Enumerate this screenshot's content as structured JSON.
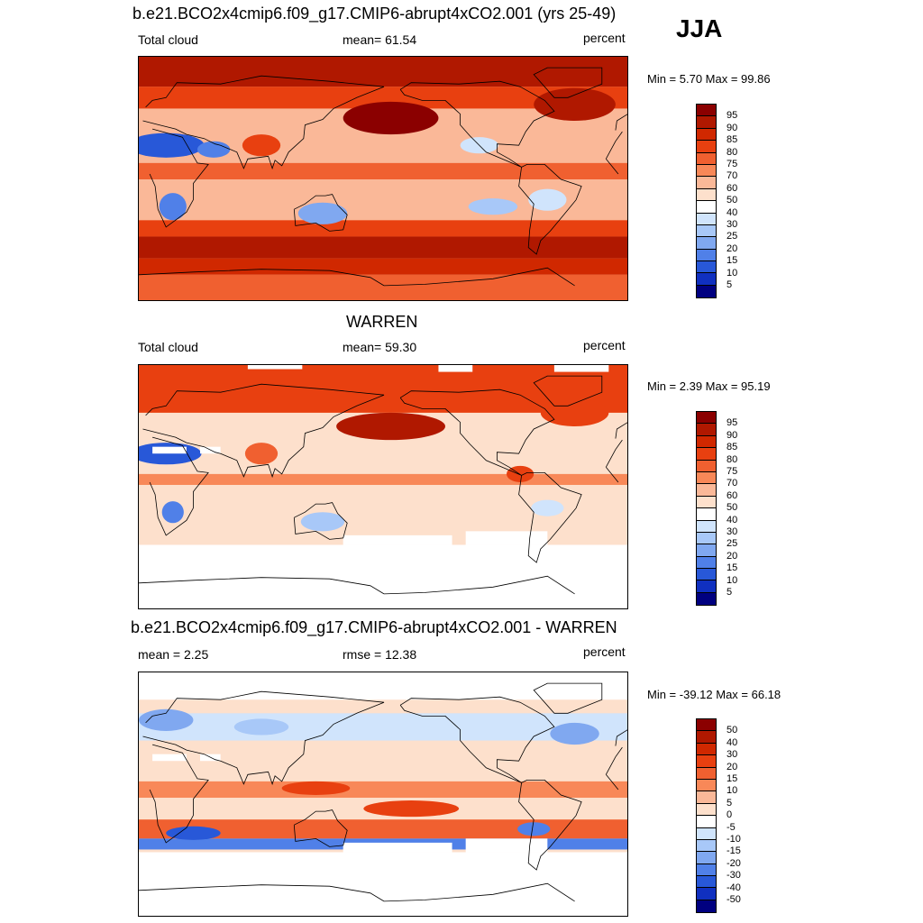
{
  "season": "JJA",
  "panels": [
    {
      "title": "b.e21.BCO2x4cmip6.f09_g17.CMIP6-abrupt4xCO2.001 (yrs 25-49)",
      "left_label": "Total cloud",
      "center_label": "mean=  61.54",
      "right_label": "percent",
      "minmax": "Min =   5.70 Max =  99.86",
      "field": "model",
      "colorbar": {
        "labels": [
          "95",
          "90",
          "85",
          "80",
          "75",
          "70",
          "60",
          "50",
          "40",
          "30",
          "25",
          "20",
          "15",
          "10",
          "5"
        ],
        "colors": [
          "#8b0000",
          "#b01800",
          "#d02800",
          "#e84010",
          "#f06030",
          "#f88858",
          "#fab898",
          "#fde0cc",
          "#ffffff",
          "#d0e4fc",
          "#a8c8f8",
          "#80a8f0",
          "#5080e8",
          "#2858d8",
          "#1030c0",
          "#000080"
        ]
      }
    },
    {
      "title": "WARREN",
      "left_label": "Total cloud",
      "center_label": "mean=  59.30",
      "right_label": "percent",
      "minmax": "Min =   2.39 Max =  95.19",
      "field": "obs",
      "colorbar": {
        "labels": [
          "95",
          "90",
          "85",
          "80",
          "75",
          "70",
          "60",
          "50",
          "40",
          "30",
          "25",
          "20",
          "15",
          "10",
          "5"
        ],
        "colors": [
          "#8b0000",
          "#b01800",
          "#d02800",
          "#e84010",
          "#f06030",
          "#f88858",
          "#fab898",
          "#fde0cc",
          "#ffffff",
          "#d0e4fc",
          "#a8c8f8",
          "#80a8f0",
          "#5080e8",
          "#2858d8",
          "#1030c0",
          "#000080"
        ]
      }
    },
    {
      "title": "b.e21.BCO2x4cmip6.f09_g17.CMIP6-abrupt4xCO2.001 - WARREN",
      "left_label": "mean =   2.25",
      "center_label": "rmse =  12.38",
      "right_label": "percent",
      "minmax": "Min = -39.12 Max =  66.18",
      "field": "diff",
      "colorbar": {
        "labels": [
          "50",
          "40",
          "30",
          "20",
          "15",
          "10",
          "5",
          "0",
          "-5",
          "-10",
          "-15",
          "-20",
          "-30",
          "-40",
          "-50"
        ],
        "colors": [
          "#8b0000",
          "#b01800",
          "#d02800",
          "#e84010",
          "#f06030",
          "#f88858",
          "#fab898",
          "#fde0cc",
          "#ffffff",
          "#d0e4fc",
          "#a8c8f8",
          "#80a8f0",
          "#5080e8",
          "#2858d8",
          "#1030c0",
          "#000080"
        ]
      }
    }
  ],
  "colors": {
    "land_outline": "#000000",
    "missing": "#ffffff"
  }
}
